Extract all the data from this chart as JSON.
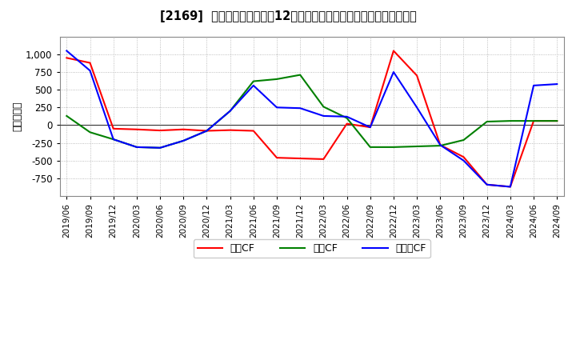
{
  "title": "[2169]  キャッシュフローの12か月移動合計の対前年同期増減額の推移",
  "ylabel": "（百万円）",
  "background_color": "#ffffff",
  "plot_bg_color": "#ffffff",
  "grid_color": "#aaaaaa",
  "dates": [
    "2019/06",
    "2019/09",
    "2019/12",
    "2020/03",
    "2020/06",
    "2020/09",
    "2020/12",
    "2021/03",
    "2021/06",
    "2021/09",
    "2021/12",
    "2022/03",
    "2022/06",
    "2022/09",
    "2022/12",
    "2023/03",
    "2023/06",
    "2023/09",
    "2023/12",
    "2024/03",
    "2024/06",
    "2024/09"
  ],
  "eigyo_cf": [
    950,
    880,
    -50,
    -60,
    -75,
    -60,
    -80,
    -70,
    -80,
    -460,
    -470,
    -480,
    20,
    -30,
    1050,
    700,
    -280,
    -450,
    -840,
    -870,
    60,
    60
  ],
  "toshi_cf": [
    130,
    -100,
    -200,
    -310,
    -320,
    -220,
    -80,
    200,
    620,
    650,
    710,
    260,
    100,
    -310,
    -310,
    -300,
    -290,
    -210,
    50,
    60,
    60,
    60
  ],
  "free_cf": [
    1050,
    770,
    -200,
    -310,
    -320,
    -220,
    -80,
    200,
    560,
    250,
    240,
    130,
    120,
    -30,
    750,
    250,
    -280,
    -500,
    -840,
    -870,
    560,
    580
  ],
  "eigyo_color": "#ff0000",
  "toshi_color": "#008000",
  "free_color": "#0000ff",
  "ylim_min": -1000,
  "ylim_max": 1250,
  "yticks": [
    -750,
    -500,
    -250,
    0,
    250,
    500,
    750,
    1000
  ],
  "legend_labels": [
    "営業CF",
    "投資CF",
    "フリーCF"
  ]
}
